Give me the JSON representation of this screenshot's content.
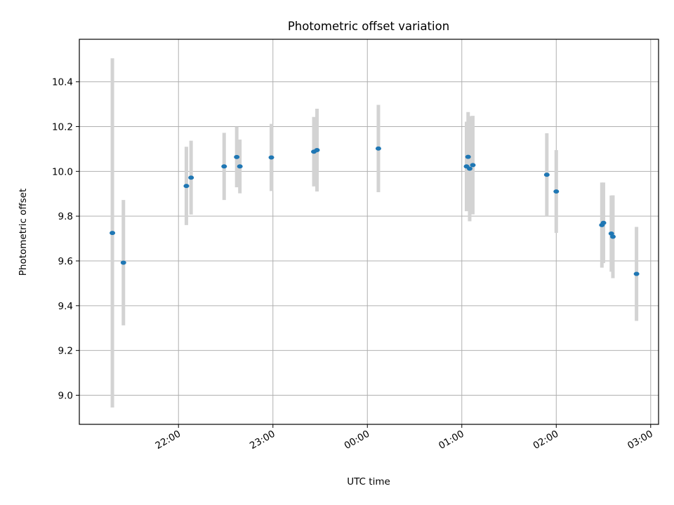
{
  "chart_data": {
    "type": "scatter",
    "title": "Photometric offset variation",
    "xlabel": "UTC time",
    "ylabel": "Photometric offset",
    "x_format": "hh:mm",
    "x_ticks": [
      "22:00",
      "23:00",
      "00:00",
      "01:00",
      "02:00",
      "03:00"
    ],
    "x_tick_values": [
      "2000-01-01T22:00",
      "2000-01-01T23:00",
      "2000-01-02T00:00",
      "2000-01-02T01:00",
      "2000-01-02T02:00",
      "2000-01-02T03:00"
    ],
    "xlim": [
      "2000-01-01T20:57",
      "2000-01-02T03:05"
    ],
    "y_ticks": [
      "9.0",
      "9.2",
      "9.4",
      "9.6",
      "9.8",
      "10.0",
      "10.2",
      "10.4"
    ],
    "y_tick_values": [
      9.0,
      9.2,
      9.4,
      9.6,
      9.8,
      10.0,
      10.2,
      10.4
    ],
    "ylim": [
      8.87,
      10.59
    ],
    "grid": true,
    "colors": {
      "point": "#1f77b4",
      "errorbar": "#d3d3d3",
      "grid": "#b0b0b0"
    },
    "points": [
      {
        "x": "2000-01-01T21:18",
        "y": 9.725,
        "yerr": 0.78
      },
      {
        "x": "2000-01-01T21:25",
        "y": 9.592,
        "yerr": 0.28
      },
      {
        "x": "2000-01-01T22:05",
        "y": 9.935,
        "yerr": 0.175
      },
      {
        "x": "2000-01-01T22:08",
        "y": 9.972,
        "yerr": 0.165
      },
      {
        "x": "2000-01-01T22:29",
        "y": 10.022,
        "yerr": 0.15
      },
      {
        "x": "2000-01-01T22:37",
        "y": 10.064,
        "yerr": 0.135
      },
      {
        "x": "2000-01-01T22:39",
        "y": 10.022,
        "yerr": 0.12
      },
      {
        "x": "2000-01-01T22:59",
        "y": 10.062,
        "yerr": 0.15
      },
      {
        "x": "2000-01-01T23:26",
        "y": 10.088,
        "yerr": 0.155
      },
      {
        "x": "2000-01-01T23:28",
        "y": 10.095,
        "yerr": 0.185
      },
      {
        "x": "2000-01-02T00:07",
        "y": 10.102,
        "yerr": 0.195
      },
      {
        "x": "2000-01-02T01:03",
        "y": 10.022,
        "yerr": 0.2
      },
      {
        "x": "2000-01-02T01:04",
        "y": 10.065,
        "yerr": 0.2
      },
      {
        "x": "2000-01-02T01:05",
        "y": 10.012,
        "yerr": 0.235
      },
      {
        "x": "2000-01-02T01:07",
        "y": 10.028,
        "yerr": 0.22
      },
      {
        "x": "2000-01-02T01:54",
        "y": 9.985,
        "yerr": 0.185
      },
      {
        "x": "2000-01-02T02:00",
        "y": 9.91,
        "yerr": 0.185
      },
      {
        "x": "2000-01-02T02:29",
        "y": 9.76,
        "yerr": 0.19
      },
      {
        "x": "2000-01-02T02:30",
        "y": 9.77,
        "yerr": 0.18
      },
      {
        "x": "2000-01-02T02:35",
        "y": 9.722,
        "yerr": 0.17
      },
      {
        "x": "2000-01-02T02:36",
        "y": 9.708,
        "yerr": 0.185
      },
      {
        "x": "2000-01-02T02:51",
        "y": 9.542,
        "yerr": 0.21
      }
    ]
  }
}
